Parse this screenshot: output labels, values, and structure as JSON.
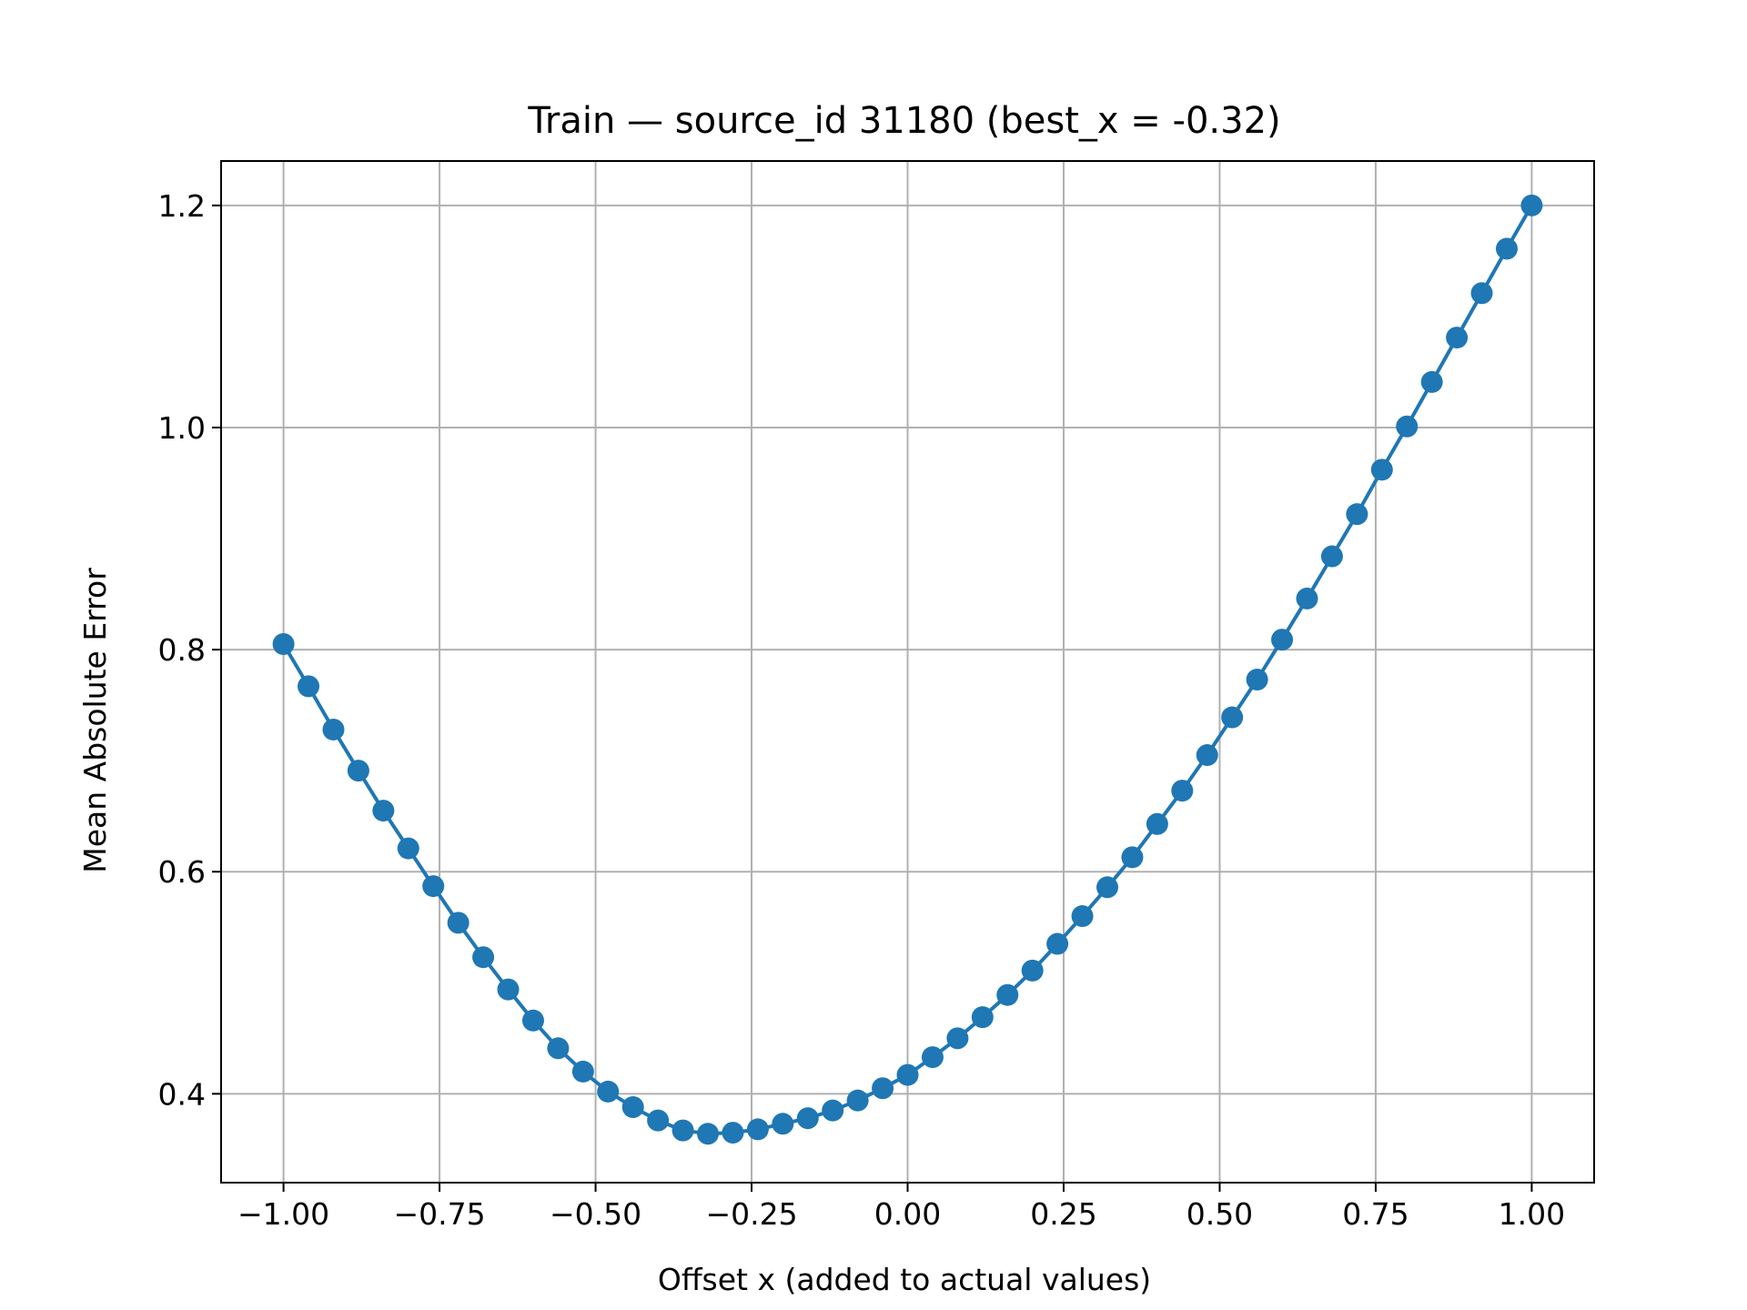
{
  "chart_data": {
    "type": "line",
    "title": "Train — source_id 31180 (best_x = -0.32)",
    "xlabel": "Offset x (added to actual values)",
    "ylabel": "Mean Absolute Error",
    "xlim": [
      -1.1,
      1.1
    ],
    "ylim": [
      0.32,
      1.24
    ],
    "grid": true,
    "x_ticks": [
      -1.0,
      -0.75,
      -0.5,
      -0.25,
      0.0,
      0.25,
      0.5,
      0.75,
      1.0
    ],
    "x_tick_labels": [
      "−1.00",
      "−0.75",
      "−0.50",
      "−0.25",
      "0.00",
      "0.25",
      "0.50",
      "0.75",
      "1.00"
    ],
    "y_ticks": [
      0.4,
      0.6,
      0.8,
      1.0,
      1.2
    ],
    "y_tick_labels": [
      "0.4",
      "0.6",
      "0.8",
      "1.0",
      "1.2"
    ],
    "series": [
      {
        "color": "#1f77b4",
        "marker": "circle",
        "x": [
          -1.0,
          -0.96,
          -0.92,
          -0.88,
          -0.84,
          -0.8,
          -0.76,
          -0.72,
          -0.68,
          -0.64,
          -0.6,
          -0.56,
          -0.52,
          -0.48,
          -0.44,
          -0.4,
          -0.36,
          -0.32,
          -0.28,
          -0.24,
          -0.2,
          -0.16,
          -0.12,
          -0.08,
          -0.04,
          0.0,
          0.04,
          0.08,
          0.12,
          0.16,
          0.2,
          0.24,
          0.28,
          0.32,
          0.36,
          0.4,
          0.44,
          0.48,
          0.52,
          0.56,
          0.6,
          0.64,
          0.68,
          0.72,
          0.76,
          0.8,
          0.84,
          0.88,
          0.92,
          0.96,
          1.0
        ],
        "y": [
          0.805,
          0.767,
          0.728,
          0.691,
          0.655,
          0.621,
          0.587,
          0.554,
          0.523,
          0.494,
          0.466,
          0.441,
          0.42,
          0.402,
          0.388,
          0.376,
          0.367,
          0.364,
          0.365,
          0.368,
          0.373,
          0.378,
          0.385,
          0.394,
          0.405,
          0.417,
          0.433,
          0.45,
          0.469,
          0.489,
          0.511,
          0.535,
          0.56,
          0.586,
          0.613,
          0.643,
          0.673,
          0.705,
          0.739,
          0.773,
          0.809,
          0.846,
          0.884,
          0.922,
          0.962,
          1.001,
          1.041,
          1.081,
          1.121,
          1.161,
          1.2
        ]
      }
    ]
  }
}
